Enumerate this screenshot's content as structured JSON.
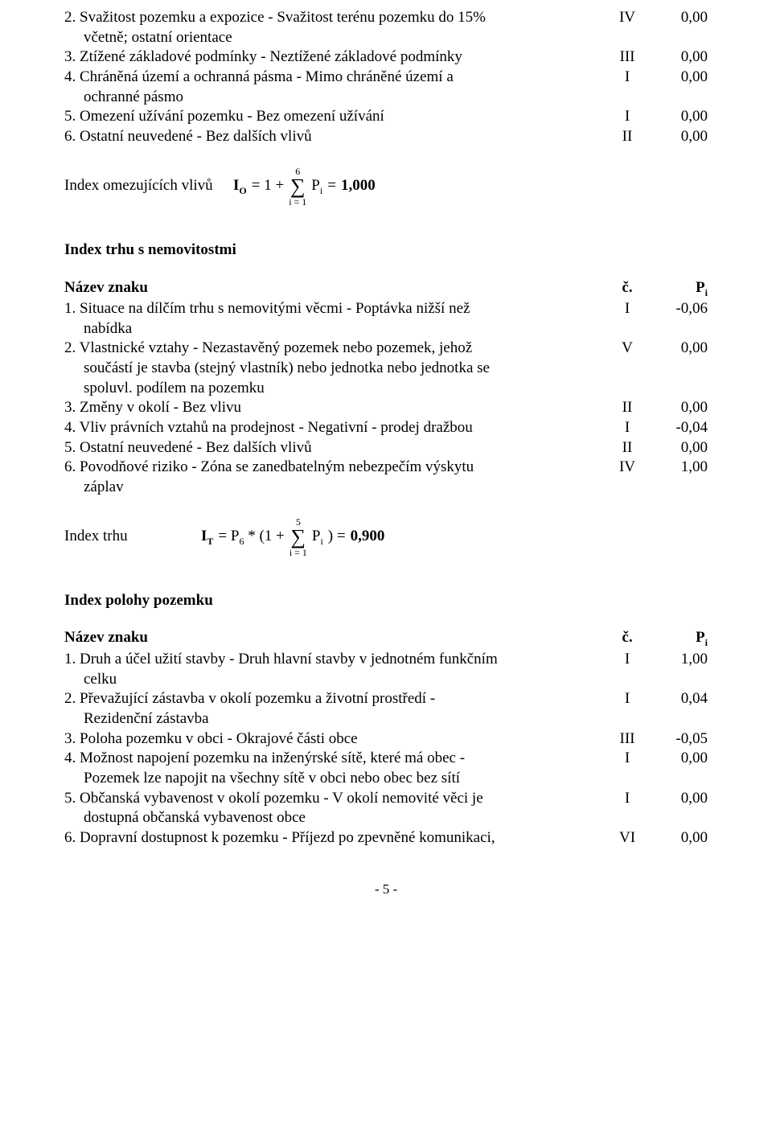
{
  "section1": {
    "items": [
      {
        "label_a": "2. Svažitost pozemku a expozice - Svažitost terénu pozemku do 15%",
        "label_b": "včetně; ostatní orientace",
        "c": "IV",
        "p": "0,00"
      },
      {
        "label_a": "3. Ztížené základové podmínky - Neztížené základové podmínky",
        "c": "III",
        "p": "0,00"
      },
      {
        "label_a": "4. Chráněná území a ochranná pásma - Mimo chráněné území a",
        "label_b": "ochranné pásmo",
        "c": "I",
        "p": "0,00"
      },
      {
        "label_a": "5. Omezení užívání pozemku - Bez omezení užívání",
        "c": "I",
        "p": "0,00"
      },
      {
        "label_a": "6. Ostatní neuvedené - Bez dalších vlivů",
        "c": "II",
        "p": "0,00"
      }
    ],
    "formula": {
      "lead": "Index omezujících vlivů",
      "lhs_sym": "I",
      "lhs_sub": "O",
      "eq1": " = 1 + ",
      "sigma_top": "6",
      "sigma_sym": "∑",
      "sigma_bot": "i = 1",
      "rhs_sym": "P",
      "rhs_sub": "i",
      "eq2": " = ",
      "value": "1,000"
    }
  },
  "section2": {
    "title": "Index trhu s nemovitostmi",
    "header": {
      "name": "Název znaku",
      "c": "č.",
      "p": "Pi",
      "p_sub": "i",
      "p_sym": "P"
    },
    "items": [
      {
        "label_a": "1. Situace na dílčím trhu s nemovitými věcmi - Poptávka nižší než",
        "label_b": "nabídka",
        "c": "I",
        "p": "-0,06"
      },
      {
        "label_a": "2. Vlastnické vztahy - Nezastavěný pozemek nebo pozemek, jehož",
        "label_b": "součástí je stavba (stejný vlastník) nebo jednotka nebo jednotka se",
        "label_c": "spoluvl. podílem na pozemku",
        "c": "V",
        "p": "0,00"
      },
      {
        "label_a": "3. Změny v okolí - Bez vlivu",
        "c": "II",
        "p": "0,00"
      },
      {
        "label_a": "4. Vliv právních vztahů na prodejnost - Negativní - prodej dražbou",
        "c": "I",
        "p": "-0,04"
      },
      {
        "label_a": "5. Ostatní neuvedené - Bez dalších vlivů",
        "c": "II",
        "p": "0,00"
      },
      {
        "label_a": "6. Povodňové riziko - Zóna se zanedbatelným nebezpečím výskytu",
        "label_b": "záplav",
        "c": "IV",
        "p": "1,00"
      }
    ],
    "formula": {
      "lead": "Index trhu",
      "lhs_sym": "I",
      "lhs_sub": "T",
      "eq1_a": " = P",
      "eq1_a_sub": "6",
      "eq1_b": " * (1 + ",
      "sigma_top": "5",
      "sigma_sym": "∑",
      "sigma_bot": "i = 1",
      "rhs_sym": " P",
      "rhs_sub": "i",
      "eq2": ") = ",
      "value": "0,900"
    }
  },
  "section3": {
    "title": "Index polohy pozemku",
    "header": {
      "name": "Název znaku",
      "c": "č.",
      "p_sym": "P",
      "p_sub": "i"
    },
    "items": [
      {
        "label_a": "1. Druh a účel užití stavby - Druh hlavní stavby v jednotném funkčním",
        "label_b": "celku",
        "c": "I",
        "p": "1,00"
      },
      {
        "label_a": "2. Převažující zástavba v okolí pozemku a životní prostředí -",
        "label_b": "Rezidenční zástavba",
        "c": "I",
        "p": "0,04"
      },
      {
        "label_a": "3. Poloha pozemku v obci - Okrajové části obce",
        "c": "III",
        "p": "-0,05"
      },
      {
        "label_a": "4. Možnost napojení pozemku na inženýrské sítě, které má obec -",
        "label_b": "Pozemek lze napojit na všechny sítě v obci nebo obec bez sítí",
        "c": "I",
        "p": "0,00"
      },
      {
        "label_a": "5. Občanská vybavenost v okolí pozemku - V okolí nemovité věci je",
        "label_b": "dostupná občanská vybavenost obce",
        "c": "I",
        "p": "0,00"
      },
      {
        "label_a": "6. Dopravní dostupnost k pozemku - Příjezd po zpevněné komunikaci,",
        "c": "VI",
        "p": "0,00"
      }
    ]
  },
  "page_number": "- 5 -"
}
